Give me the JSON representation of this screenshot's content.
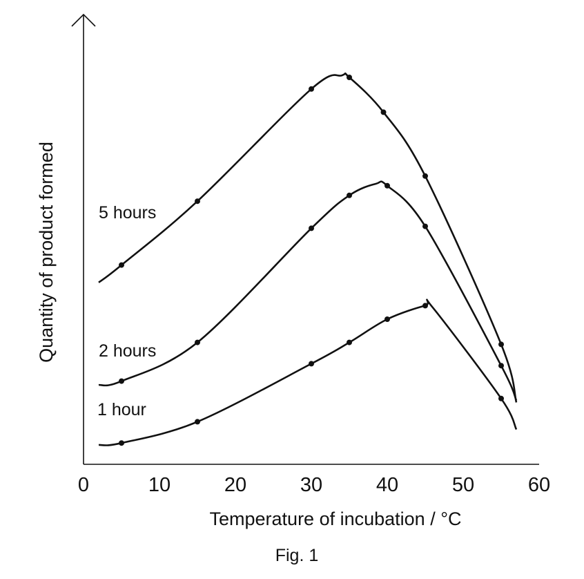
{
  "chart_data": {
    "type": "line",
    "title": "",
    "caption": "Fig. 1",
    "xlabel": "Temperature of incubation / °C",
    "ylabel": "Quantity of product formed",
    "xlim": [
      0,
      60
    ],
    "ylim": [
      0,
      100
    ],
    "x_ticks": [
      0,
      10,
      20,
      30,
      40,
      50,
      60
    ],
    "x_tick_labels": [
      "0",
      "10",
      "20",
      "30",
      "40",
      "50",
      "60"
    ],
    "y_ticks": [],
    "grid": false,
    "legend": "none",
    "series": [
      {
        "name": "5 hours",
        "curve": [
          [
            2,
            47
          ],
          [
            5,
            51.5
          ],
          [
            15,
            68
          ],
          [
            30,
            97
          ],
          [
            34,
            100.5
          ],
          [
            35,
            100
          ],
          [
            39.5,
            91
          ],
          [
            45,
            74.5
          ],
          [
            55,
            31
          ],
          [
            57,
            16
          ]
        ],
        "markers": [
          [
            5,
            51.5
          ],
          [
            15,
            68
          ],
          [
            30,
            97
          ],
          [
            35,
            100
          ],
          [
            39.5,
            91
          ],
          [
            45,
            74.5
          ],
          [
            55,
            31
          ]
        ]
      },
      {
        "name": "2 hours",
        "curve": [
          [
            2,
            20.5
          ],
          [
            5,
            21.5
          ],
          [
            15,
            31.5
          ],
          [
            30,
            61
          ],
          [
            35,
            69.5
          ],
          [
            38.5,
            72.5
          ],
          [
            40,
            72
          ],
          [
            45,
            61.5
          ],
          [
            55,
            25.5
          ],
          [
            57,
            16.5
          ]
        ],
        "markers": [
          [
            5,
            21.5
          ],
          [
            15,
            31.5
          ],
          [
            30,
            61
          ],
          [
            35,
            69.5
          ],
          [
            40,
            72
          ],
          [
            45,
            61.5
          ],
          [
            55,
            25.5
          ]
        ]
      },
      {
        "name": "1 hour",
        "curve": [
          [
            2,
            5
          ],
          [
            5,
            5.5
          ],
          [
            15,
            11
          ],
          [
            30,
            26
          ],
          [
            35,
            31.5
          ],
          [
            40,
            37.5
          ],
          [
            45,
            41
          ],
          [
            46,
            40.5
          ],
          [
            55,
            17
          ],
          [
            57,
            9
          ]
        ],
        "markers": [
          [
            5,
            5.5
          ],
          [
            15,
            11
          ],
          [
            30,
            26
          ],
          [
            35,
            31.5
          ],
          [
            40,
            37.5
          ],
          [
            45,
            41
          ],
          [
            55,
            17
          ]
        ]
      }
    ]
  }
}
